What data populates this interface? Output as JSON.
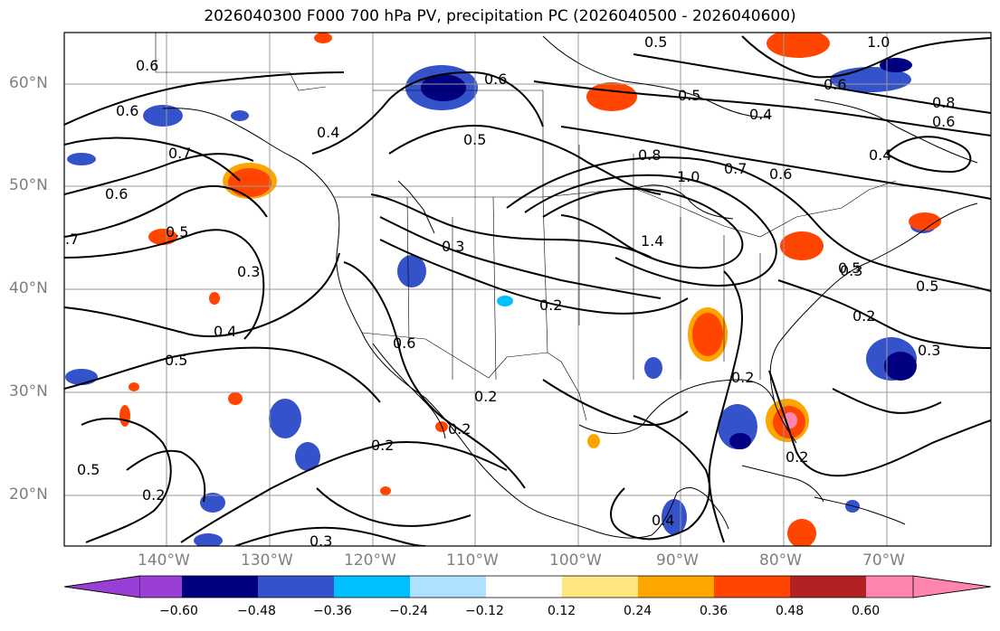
{
  "title": "2026040300 F000 700 hPa PV, precipitation PC (2026040500 - 2026040600)",
  "lat_labels": [
    "60°N",
    "50°N",
    "40°N",
    "30°N",
    "20°N"
  ],
  "lon_labels": [
    "140°W",
    "130°W",
    "120°W",
    "110°W",
    "100°W",
    "90°W",
    "80°W",
    "70°W"
  ],
  "colorbar": {
    "ticks": [
      "−0.60",
      "−0.48",
      "−0.36",
      "−0.24",
      "−0.12",
      "0.12",
      "0.24",
      "0.36",
      "0.48",
      "0.60"
    ],
    "colors": [
      "#9a3fd6",
      "#000080",
      "#3452c9",
      "#00bfff",
      "#b0e0ff",
      "#ffffff",
      "#ffe680",
      "#ffa500",
      "#ff4500",
      "#b22222",
      "#ff85b0"
    ]
  },
  "contour_labels": [
    "0.6",
    "0.6",
    "0.6",
    "0.7",
    "0.6",
    "0.5",
    ".7",
    "0.3",
    "0.4",
    "0.5",
    "0.4",
    "0.5",
    "0.3",
    "0.6",
    "0.2",
    "0.2",
    "0.2",
    "0.2",
    "0.5",
    "0.3",
    "0.2",
    "0.4",
    "0.5",
    "0.5",
    "0.6",
    "0.8",
    "1.0",
    "0.7",
    "0.6",
    "1.4",
    "0.4",
    "0.8",
    "0.6",
    "1.0",
    "0.4",
    "0.5",
    "0.3",
    "0.5",
    "0.2",
    "0.3",
    "0.2",
    "0.2"
  ]
}
